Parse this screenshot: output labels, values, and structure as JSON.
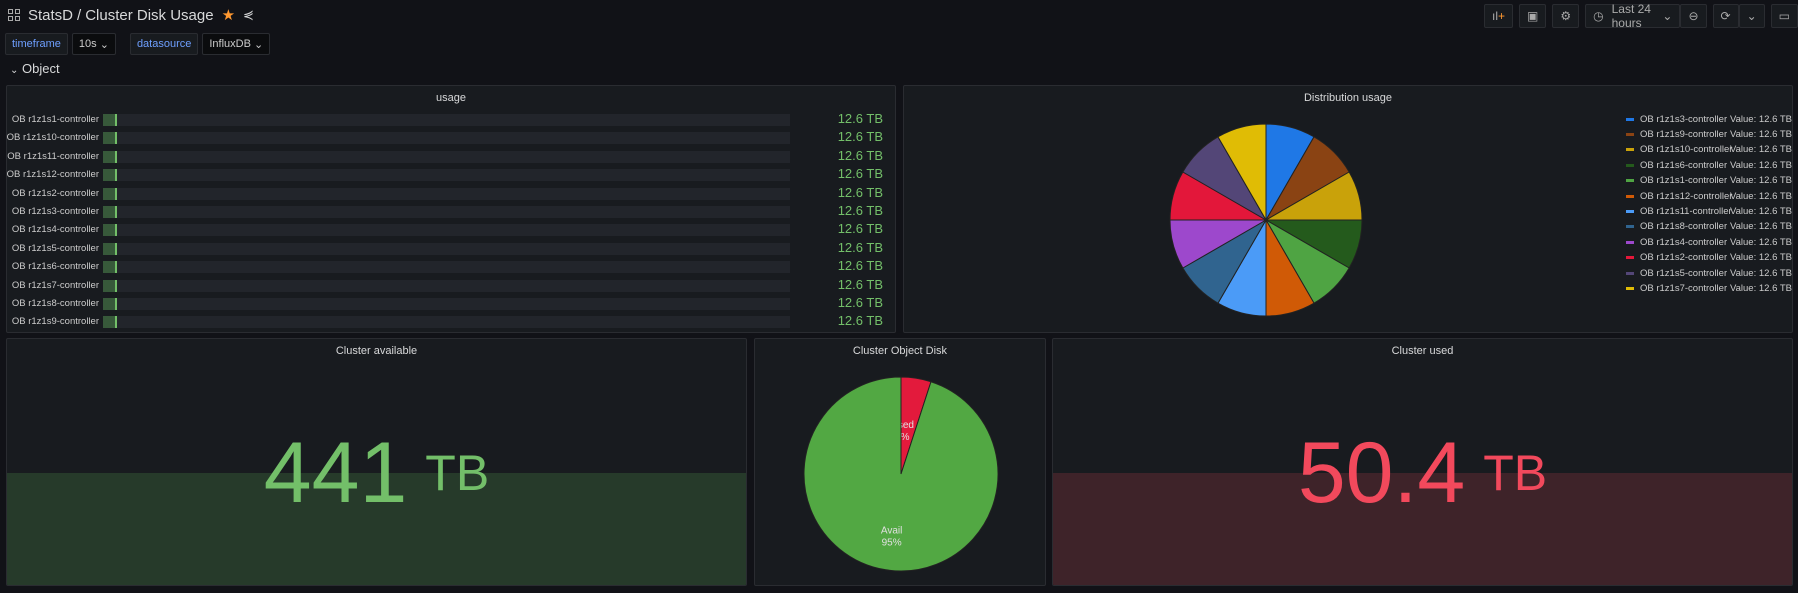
{
  "header": {
    "folder": "StatsD",
    "separator": "/",
    "title": "Cluster Disk Usage",
    "star_icon": "star-icon",
    "share_icon": "share-icon"
  },
  "toolbar": {
    "add_panel": "add-panel-icon",
    "save": "save-icon",
    "settings": "gear-icon",
    "time_range": "Last 24 hours",
    "zoom_out": "zoom-out-icon",
    "refresh": "refresh-icon",
    "kiosk": "monitor-icon"
  },
  "variables": [
    {
      "label": "timeframe",
      "value": "10s"
    },
    {
      "label": "datasource",
      "value": "InfluxDB"
    }
  ],
  "row": {
    "title": "Object"
  },
  "usage": {
    "title": "usage",
    "color": "#73BF69",
    "items": [
      {
        "label": "OB r1z1s1-controller",
        "value": "12.6 TB"
      },
      {
        "label": "OB r1z1s10-controller",
        "value": "12.6 TB"
      },
      {
        "label": "OB r1z1s11-controller",
        "value": "12.6 TB"
      },
      {
        "label": "OB r1z1s12-controller",
        "value": "12.6 TB"
      },
      {
        "label": "OB r1z1s2-controller",
        "value": "12.6 TB"
      },
      {
        "label": "OB r1z1s3-controller",
        "value": "12.6 TB"
      },
      {
        "label": "OB r1z1s4-controller",
        "value": "12.6 TB"
      },
      {
        "label": "OB r1z1s5-controller",
        "value": "12.6 TB"
      },
      {
        "label": "OB r1z1s6-controller",
        "value": "12.6 TB"
      },
      {
        "label": "OB r1z1s7-controller",
        "value": "12.6 TB"
      },
      {
        "label": "OB r1z1s8-controller",
        "value": "12.6 TB"
      },
      {
        "label": "OB r1z1s9-controller",
        "value": "12.6 TB"
      }
    ],
    "fill_fraction": 0.02
  },
  "distribution": {
    "title": "Distribution usage",
    "chart_data": {
      "type": "pie",
      "unit": "TB",
      "slices": [
        {
          "name": "OB r1z1s3-controller",
          "value": 12.6,
          "label": "Value: 12.6 TB",
          "color": "#1f78e6"
        },
        {
          "name": "OB r1z1s9-controller",
          "value": 12.6,
          "label": "Value: 12.6 TB",
          "color": "#8a4313"
        },
        {
          "name": "OB r1z1s10-controller",
          "value": 12.6,
          "label": "Value: 12.6 TB",
          "color": "#c9a20a"
        },
        {
          "name": "OB r1z1s6-controller",
          "value": 12.6,
          "label": "Value: 12.6 TB",
          "color": "#245a1c"
        },
        {
          "name": "OB r1z1s1-controller",
          "value": 12.6,
          "label": "Value: 12.6 TB",
          "color": "#4fa443"
        },
        {
          "name": "OB r1z1s12-controller",
          "value": 12.6,
          "label": "Value: 12.6 TB",
          "color": "#d05a06"
        },
        {
          "name": "OB r1z1s11-controller",
          "value": 12.6,
          "label": "Value: 12.6 TB",
          "color": "#4b9bf7"
        },
        {
          "name": "OB r1z1s8-controller",
          "value": 12.6,
          "label": "Value: 12.6 TB",
          "color": "#30648f"
        },
        {
          "name": "OB r1z1s4-controller",
          "value": 12.6,
          "label": "Value: 12.6 TB",
          "color": "#9d48cc"
        },
        {
          "name": "OB r1z1s2-controller",
          "value": 12.6,
          "label": "Value: 12.6 TB",
          "color": "#e3173a"
        },
        {
          "name": "OB r1z1s5-controller",
          "value": 12.6,
          "label": "Value: 12.6 TB",
          "color": "#534677"
        },
        {
          "name": "OB r1z1s7-controller",
          "value": 12.6,
          "label": "Value: 12.6 TB",
          "color": "#e0bc05"
        }
      ],
      "legend": "right"
    }
  },
  "available": {
    "title": "Cluster available",
    "value": "441",
    "unit": "TB",
    "color": "#73BF69",
    "bg": "#263a2a"
  },
  "object_disk": {
    "title": "Cluster Object Disk",
    "chart_data": {
      "type": "pie",
      "slices": [
        {
          "name": "Used",
          "value": 5,
          "label": "5%",
          "color": "#e31a3c"
        },
        {
          "name": "Avail",
          "value": 95,
          "label": "95%",
          "color": "#52a843"
        }
      ]
    }
  },
  "used": {
    "title": "Cluster used",
    "value": "50.4",
    "unit": "TB",
    "color": "#F2495C",
    "bg": "#3e2329"
  }
}
